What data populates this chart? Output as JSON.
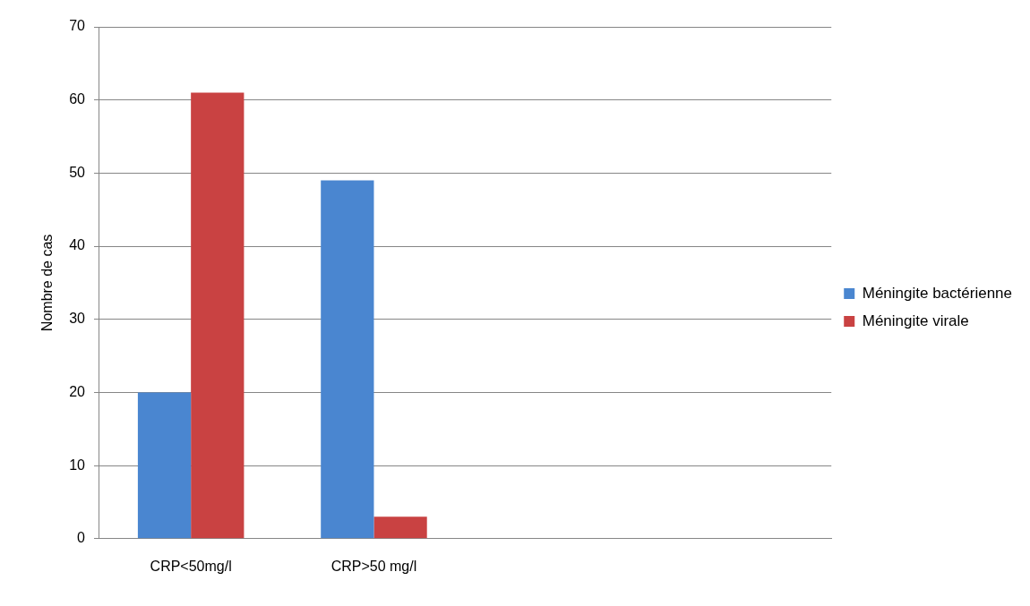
{
  "chart_data": {
    "type": "bar",
    "ylabel": "Nombre de cas",
    "categories": [
      "CRP<50mg/l",
      "CRP>50 mg/l",
      null,
      null
    ],
    "series": [
      {
        "name": "Méningite bactérienne",
        "color": "#4a86d0",
        "values": [
          20,
          49,
          null,
          null
        ]
      },
      {
        "name": "Méningite virale",
        "color": "#c94242",
        "values": [
          61,
          3,
          null,
          null
        ]
      }
    ],
    "ylim": [
      0,
      70
    ],
    "yticks": [
      0,
      10,
      20,
      30,
      40,
      50,
      60,
      70
    ],
    "grid": "y",
    "legend": "right"
  }
}
